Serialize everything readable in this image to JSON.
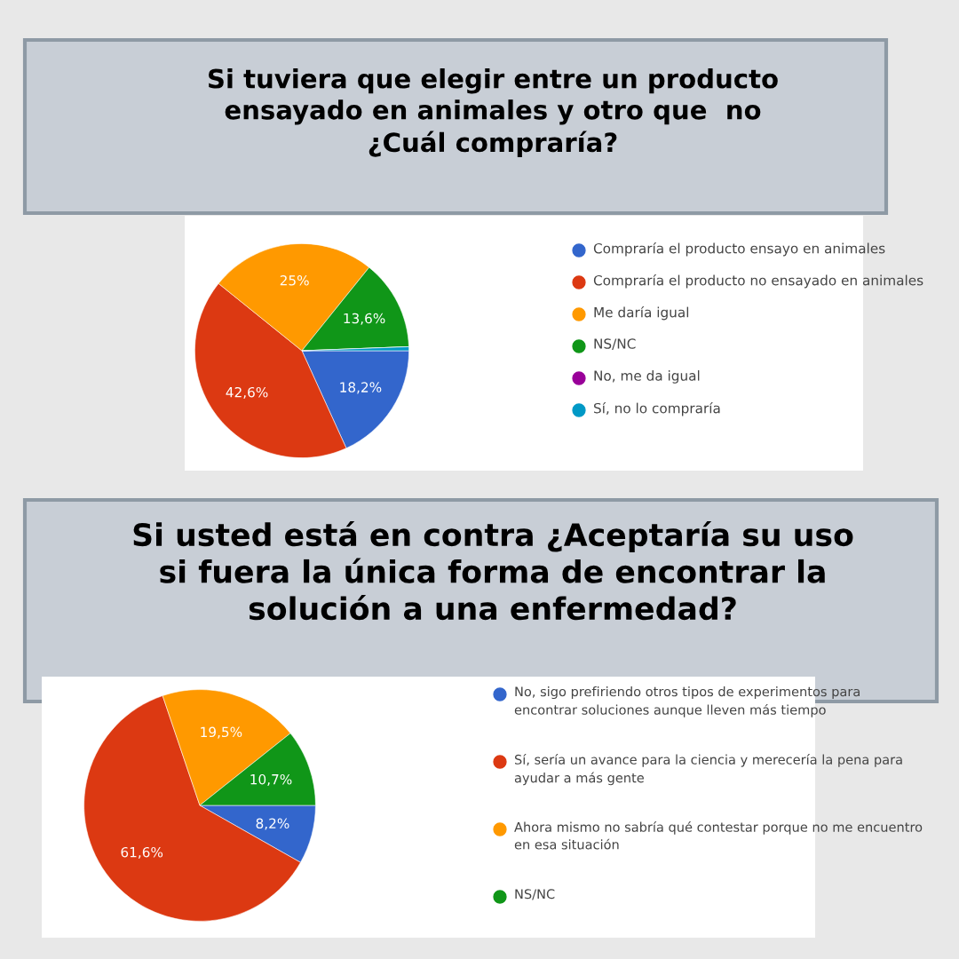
{
  "chart_data": [
    {
      "type": "pie",
      "title": "Si tuviera que elegir entre un producto\nensayado en animales y otro que  no\n¿Cuál compraría?",
      "categories": [
        "Compraría el producto ensayo en animales",
        "Compraría el producto no ensayado en animales",
        "Me daría igual",
        "NS/NC",
        "No, me da igual",
        "Sí, no lo compraría"
      ],
      "values": [
        18.2,
        42.6,
        25,
        13.6,
        0,
        0.6
      ],
      "colors": [
        "#3366cc",
        "#dc3912",
        "#ff9900",
        "#109618",
        "#990099",
        "#0099c6"
      ],
      "value_labels": [
        "18,2%",
        "42,6%",
        "25%",
        "13,6%",
        null,
        null
      ],
      "legend": "right"
    },
    {
      "type": "pie",
      "title": "Si usted está en contra ¿Aceptaría su uso\nsi fuera la única forma de encontrar la\nsolución a una enfermedad?",
      "categories": [
        "No, sigo prefiriendo otros tipos de experimentos para encontrar soluciones aunque lleven más tiempo",
        "Sí, sería un avance para la ciencia y merecería la pena para ayudar a más gente",
        "Ahora mismo no sabría qué contestar porque no me encuentro en esa situación",
        "NS/NC"
      ],
      "values": [
        8.2,
        61.6,
        19.5,
        10.7
      ],
      "colors": [
        "#3366cc",
        "#dc3912",
        "#ff9900",
        "#109618"
      ],
      "value_labels": [
        "8,2%",
        "61,6%",
        "19,5%",
        "10,7%"
      ],
      "legend": "right"
    }
  ]
}
